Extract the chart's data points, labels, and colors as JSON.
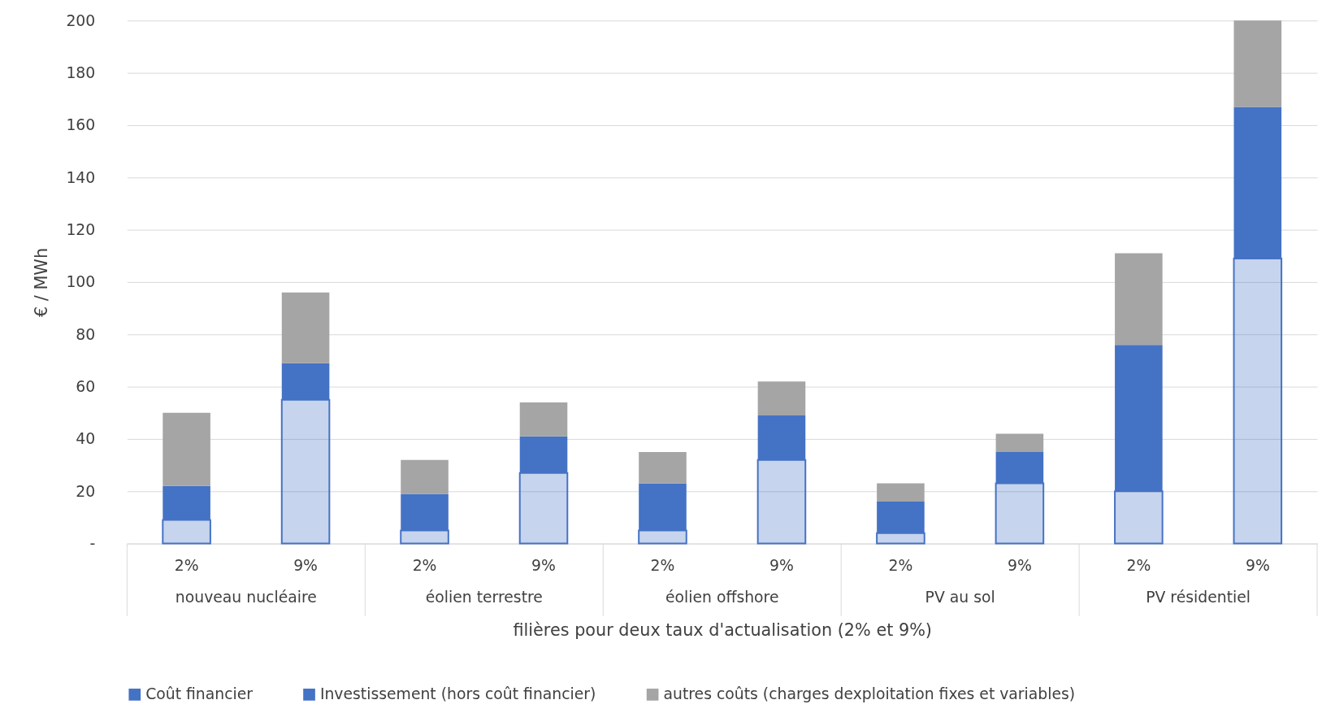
{
  "chart_data": {
    "type": "bar",
    "stacked": true,
    "xlabel": "filières pour deux taux d'actualisation (2% et 9%)",
    "ylabel": "€ / MWh",
    "categories": [
      "2%",
      "9%",
      "2%",
      "9%",
      "2%",
      "9%",
      "2%",
      "9%",
      "2%",
      "9%"
    ],
    "annotations": [
      "nouveau nucléaire",
      "éolien terrestre",
      "éolien offshore",
      "PV au sol",
      "PV résidentiel"
    ],
    "series": [
      {
        "name": "Coût financier",
        "color": "#4472c4",
        "values": [
          9,
          55,
          5,
          27,
          5,
          32,
          4,
          23,
          20,
          109
        ]
      },
      {
        "name": "Investissement (hors coût financier)",
        "color": "#4472c4",
        "values": [
          13,
          14,
          14,
          14,
          18,
          17,
          12,
          12,
          56,
          58
        ]
      },
      {
        "name": "autres coûts (charges dexploitation fixes et variables)",
        "color": "#a5a5a5",
        "values": [
          28,
          27,
          13,
          13,
          12,
          13,
          7,
          7,
          35,
          33
        ]
      }
    ],
    "ylim": [
      0,
      200
    ],
    "yticks": [
      {
        "value": 0,
        "label": "-"
      },
      20,
      40,
      60,
      80,
      100,
      120,
      140,
      160,
      180,
      200
    ],
    "grid": "y",
    "legend": "bottom"
  }
}
